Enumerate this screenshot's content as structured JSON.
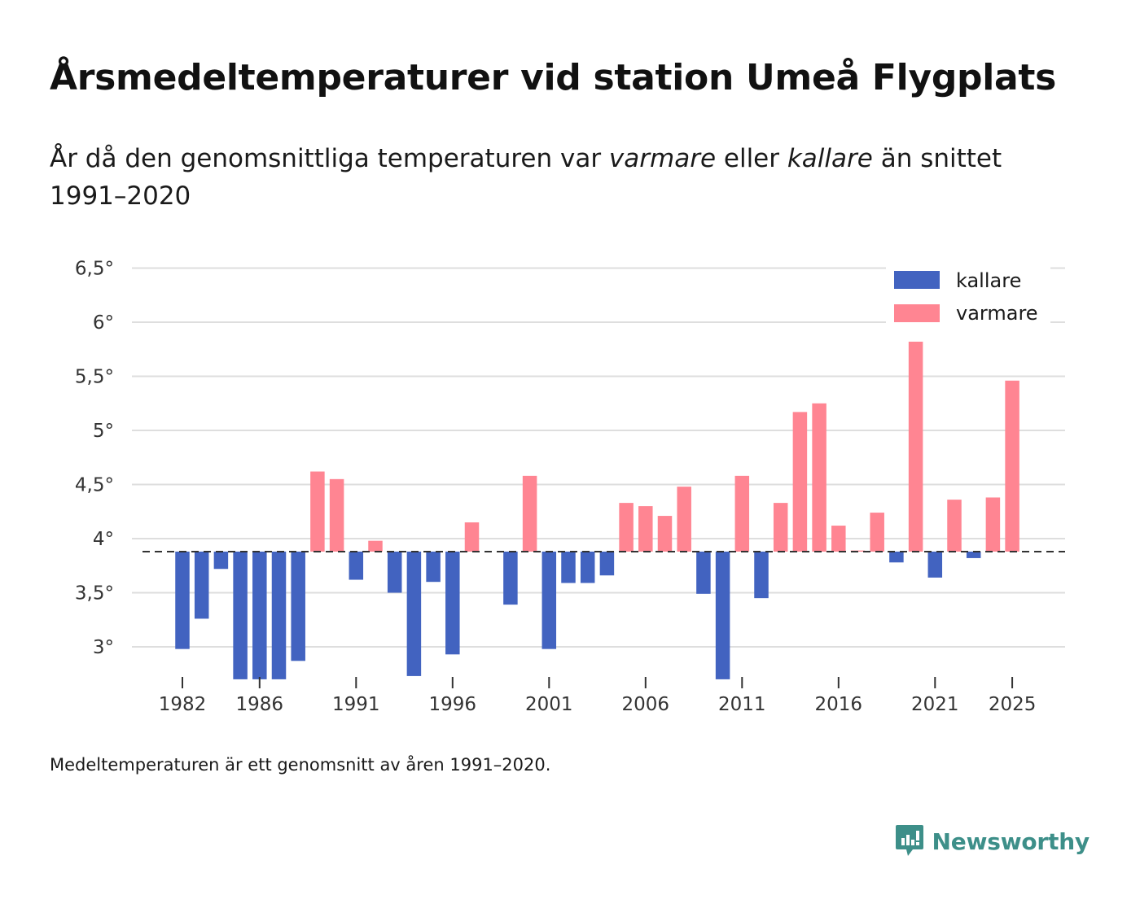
{
  "header": {
    "title": "Årsmedeltemperaturer vid station Umeå Flygplats",
    "subtitle_part1": "År då den genomsnittliga temperaturen var ",
    "subtitle_em1": "varmare",
    "subtitle_part2": " eller ",
    "subtitle_em2": "kallare",
    "subtitle_part3": " än snittet 1991–2020"
  },
  "footer": {
    "caption": "Medeltemperaturen är ett genomsnitt av åren 1991–2020.",
    "brand": "Newsworthy"
  },
  "colors": {
    "kallare": "#4263c0",
    "varmare": "#ff8592",
    "brand": "#3d8f89"
  },
  "chart_data": {
    "type": "bar",
    "title": "Årsmedeltemperaturer vid station Umeå Flygplats",
    "baseline": 3.88,
    "baseline_label": "snittet 1991–2020",
    "ylim": [
      2.7,
      6.6
    ],
    "y_ticks": [
      3,
      3.5,
      4,
      4.5,
      5,
      5.5,
      6,
      6.5
    ],
    "y_tick_labels": [
      "3°",
      "3,5°",
      "4°",
      "4,5°",
      "5°",
      "5,5°",
      "6°",
      "6,5°"
    ],
    "x_ticks": [
      1982,
      1986,
      1991,
      1996,
      2001,
      2006,
      2011,
      2016,
      2021,
      2025
    ],
    "x_tick_labels": [
      "1982",
      "1986",
      "1991",
      "1996",
      "2001",
      "2006",
      "2011",
      "2016",
      "2021",
      "2025"
    ],
    "legend": [
      {
        "key": "kallare",
        "label": "kallare"
      },
      {
        "key": "varmare",
        "label": "varmare"
      }
    ],
    "legend_position": "top-right",
    "series_rule": "values below baseline = kallare, above = varmare",
    "years": [
      1982,
      1983,
      1984,
      1985,
      1986,
      1987,
      1988,
      1989,
      1990,
      1991,
      1992,
      1993,
      1994,
      1995,
      1996,
      1997,
      1998,
      1999,
      2000,
      2001,
      2002,
      2003,
      2004,
      2005,
      2006,
      2007,
      2008,
      2009,
      2010,
      2011,
      2012,
      2013,
      2014,
      2015,
      2016,
      2017,
      2018,
      2019,
      2020,
      2021,
      2022,
      2023,
      2024,
      2025
    ],
    "values": [
      2.98,
      3.26,
      3.72,
      2.7,
      2.7,
      2.7,
      2.87,
      4.62,
      4.55,
      3.62,
      3.98,
      3.5,
      2.73,
      3.6,
      2.93,
      4.15,
      3.88,
      3.39,
      4.58,
      2.98,
      3.59,
      3.59,
      3.66,
      4.33,
      4.3,
      4.21,
      4.48,
      3.49,
      2.7,
      4.58,
      3.45,
      4.33,
      5.17,
      5.25,
      4.12,
      3.89,
      4.24,
      3.78,
      5.82,
      3.64,
      4.36,
      3.82,
      4.38,
      5.46
    ]
  }
}
